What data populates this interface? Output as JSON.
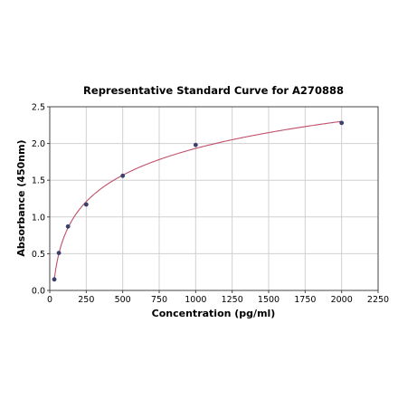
{
  "chart_data": {
    "type": "scatter",
    "title": "Representative Standard Curve for A270888",
    "xlabel": "Concentration (pg/ml)",
    "ylabel": "Absorbance (450nm)",
    "xlim": [
      0,
      2250
    ],
    "ylim": [
      0,
      2.5
    ],
    "x_ticks": [
      "0",
      "250",
      "500",
      "750",
      "1000",
      "1250",
      "1500",
      "1750",
      "2000",
      "2250"
    ],
    "y_ticks": [
      "0.0",
      "0.5",
      "1.0",
      "1.5",
      "2.0",
      "2.5"
    ],
    "grid": true,
    "series": [
      {
        "x": [
          31.25,
          62.5,
          125,
          250,
          500,
          1000,
          2000
        ],
        "y": [
          0.15,
          0.51,
          0.87,
          1.17,
          1.56,
          1.98,
          2.28
        ]
      }
    ],
    "fit_curve": true,
    "colors": {
      "points": "#3a3f6b",
      "curve": "#c0506a",
      "grid": "#d0d0d0"
    }
  }
}
